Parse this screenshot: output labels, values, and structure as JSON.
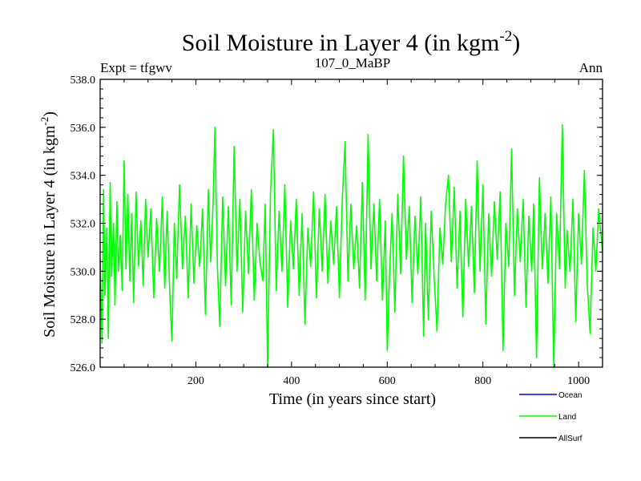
{
  "chart_data": {
    "type": "line",
    "title": "Soil Moisture in Layer 4 (in kgm",
    "title_sup": "-2",
    "title_close": ")",
    "subtitle_left": "Expt = tfgwv",
    "subtitle_center": "107_0_MaBP",
    "subtitle_right": "Ann",
    "xlabel": "Time (in years since start)",
    "ylabel": "Soil Moisture in Layer 4 (in kgm",
    "ylabel_sup": "-2",
    "ylabel_close": ")",
    "xlim": [
      0,
      1050
    ],
    "ylim": [
      526.0,
      538.0
    ],
    "xticks": [
      200,
      400,
      600,
      800,
      1000
    ],
    "yticks": [
      526.0,
      528.0,
      530.0,
      532.0,
      534.0,
      536.0,
      538.0
    ],
    "ytick_labels": [
      "526.0",
      "528.0",
      "530.0",
      "532.0",
      "534.0",
      "536.0",
      "538.0"
    ],
    "grid": false,
    "legend_position": "bottom-right",
    "series": [
      {
        "name": "Ocean",
        "color": "#0000ff",
        "values": []
      },
      {
        "name": "Land",
        "color": "#00ff00",
        "x": [
          0,
          4,
          7,
          10,
          14,
          17,
          21,
          24,
          28,
          31,
          35,
          38,
          42,
          46,
          50,
          54,
          58,
          62,
          66,
          70,
          75,
          80,
          85,
          90,
          95,
          100,
          106,
          112,
          118,
          124,
          130,
          135,
          140,
          146,
          150,
          155,
          160,
          166,
          172,
          178,
          184,
          190,
          196,
          202,
          208,
          214,
          220,
          226,
          231,
          236,
          240,
          245,
          250,
          256,
          262,
          268,
          274,
          280,
          286,
          292,
          298,
          304,
          310,
          316,
          322,
          328,
          334,
          340,
          345,
          350,
          356,
          362,
          368,
          374,
          380,
          386,
          392,
          398,
          404,
          410,
          416,
          422,
          428,
          434,
          440,
          446,
          452,
          458,
          464,
          470,
          476,
          482,
          488,
          494,
          500,
          506,
          512,
          518,
          524,
          530,
          536,
          542,
          548,
          554,
          560,
          566,
          572,
          578,
          584,
          590,
          596,
          600,
          605,
          610,
          616,
          622,
          628,
          634,
          640,
          646,
          652,
          658,
          664,
          670,
          676,
          680,
          686,
          692,
          698,
          704,
          710,
          716,
          722,
          728,
          734,
          740,
          746,
          752,
          758,
          764,
          770,
          776,
          782,
          788,
          794,
          800,
          806,
          812,
          818,
          824,
          830,
          836,
          842,
          848,
          854,
          860,
          866,
          872,
          878,
          884,
          890,
          896,
          902,
          906,
          912,
          918,
          924,
          930,
          936,
          942,
          948,
          954,
          960,
          966,
          972,
          976,
          982,
          988,
          994,
          1000,
          1006,
          1012,
          1018,
          1024,
          1030,
          1036,
          1042,
          1050
        ],
        "values": [
          530.5,
          527.0,
          533.4,
          529.0,
          531.8,
          527.2,
          533.7,
          529.8,
          532.0,
          528.6,
          532.9,
          530.0,
          531.5,
          529.2,
          534.6,
          530.1,
          533.2,
          529.6,
          532.4,
          528.7,
          533.3,
          530.2,
          532.1,
          529.4,
          533.0,
          530.6,
          532.6,
          528.9,
          532.2,
          530.0,
          533.1,
          529.3,
          532.5,
          528.8,
          527.1,
          532.0,
          529.7,
          533.6,
          530.1,
          532.3,
          528.9,
          532.8,
          529.5,
          531.9,
          530.2,
          532.6,
          528.2,
          533.4,
          530.4,
          532.8,
          536.0,
          530.2,
          527.7,
          533.1,
          529.4,
          532.7,
          528.6,
          535.2,
          530.0,
          533.0,
          528.3,
          532.5,
          529.9,
          533.4,
          528.8,
          532.0,
          530.4,
          529.6,
          532.8,
          526.0,
          533.3,
          535.9,
          529.2,
          532.5,
          530.0,
          533.6,
          528.5,
          532.1,
          530.1,
          533.0,
          529.0,
          532.4,
          527.8,
          531.8,
          530.2,
          533.3,
          528.9,
          532.6,
          530.0,
          533.2,
          529.5,
          532.1,
          530.3,
          532.7,
          528.9,
          533.0,
          535.4,
          529.6,
          532.8,
          530.1,
          531.9,
          529.3,
          533.7,
          528.8,
          535.7,
          530.1,
          532.8,
          529.6,
          533.0,
          528.8,
          532.1,
          526.7,
          530.0,
          532.4,
          528.3,
          533.2,
          529.9,
          534.8,
          530.5,
          532.7,
          528.7,
          532.3,
          529.9,
          533.1,
          527.3,
          532.0,
          528.0,
          532.5,
          529.8,
          527.5,
          531.8,
          530.3,
          532.8,
          534.0,
          530.4,
          533.5,
          529.3,
          532.5,
          528.1,
          533.0,
          530.2,
          532.7,
          529.1,
          534.6,
          530.0,
          533.6,
          527.8,
          532.4,
          529.8,
          532.9,
          530.5,
          533.3,
          526.7,
          532.0,
          530.2,
          535.1,
          529.0,
          532.6,
          530.4,
          533.0,
          528.5,
          532.3,
          530.0,
          532.8,
          526.4,
          533.9,
          530.1,
          532.4,
          529.5,
          533.1,
          526.0,
          532.4,
          530.1,
          536.1,
          529.3,
          531.7,
          530.0,
          533.0,
          527.9,
          532.4,
          530.3,
          534.2,
          529.5,
          527.4,
          531.8,
          530.0,
          532.6,
          530.8
        ]
      },
      {
        "name": "AllSurf",
        "color": "#000000",
        "values": []
      }
    ]
  }
}
